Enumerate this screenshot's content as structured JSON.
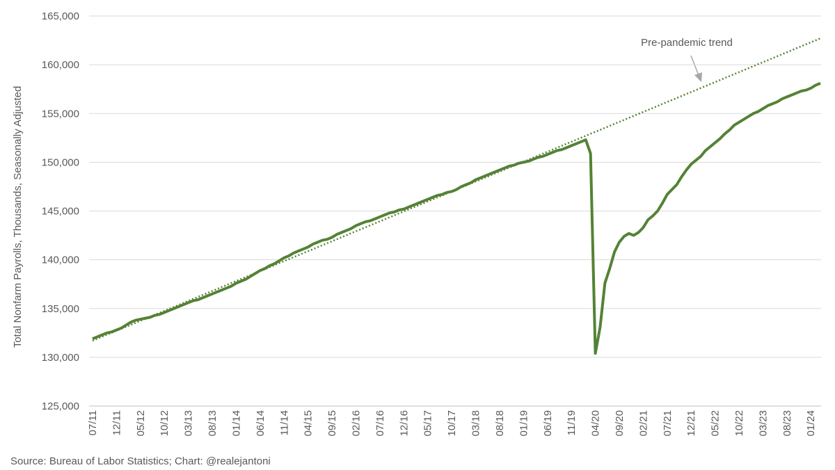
{
  "chart_data": {
    "type": "line",
    "y_label": "Total Nonfarm Payrolls, Thousands, Seasonally Adjusted",
    "annotation": "Pre-pandemic trend",
    "source": "Source: Bureau of Labor Statistics; Chart: @realejantoni",
    "ylim": [
      125000,
      165000
    ],
    "yticks": [
      {
        "value": 125000,
        "label": "125,000"
      },
      {
        "value": 130000,
        "label": "130,000"
      },
      {
        "value": 135000,
        "label": "135,000"
      },
      {
        "value": 140000,
        "label": "140,000"
      },
      {
        "value": 145000,
        "label": "145,000"
      },
      {
        "value": 150000,
        "label": "150,000"
      },
      {
        "value": 155000,
        "label": "155,000"
      },
      {
        "value": 160000,
        "label": "160,000"
      },
      {
        "value": 165000,
        "label": "165,000"
      }
    ],
    "grid": true,
    "categories": [
      "07/11",
      null,
      null,
      null,
      null,
      "12/11",
      null,
      null,
      null,
      null,
      "05/12",
      null,
      null,
      null,
      null,
      "10/12",
      null,
      null,
      null,
      null,
      "03/13",
      null,
      null,
      null,
      null,
      "08/13",
      null,
      null,
      null,
      null,
      "01/14",
      null,
      null,
      null,
      null,
      "06/14",
      null,
      null,
      null,
      null,
      "11/14",
      null,
      null,
      null,
      null,
      "04/15",
      null,
      null,
      null,
      null,
      "09/15",
      null,
      null,
      null,
      null,
      "02/16",
      null,
      null,
      null,
      null,
      "07/16",
      null,
      null,
      null,
      null,
      "12/16",
      null,
      null,
      null,
      null,
      "05/17",
      null,
      null,
      null,
      null,
      "10/17",
      null,
      null,
      null,
      null,
      "03/18",
      null,
      null,
      null,
      null,
      "08/18",
      null,
      null,
      null,
      null,
      "01/19",
      null,
      null,
      null,
      null,
      "06/19",
      null,
      null,
      null,
      null,
      "11/19",
      null,
      null,
      null,
      null,
      "04/20",
      null,
      null,
      null,
      null,
      "09/20",
      null,
      null,
      null,
      null,
      "02/21",
      null,
      null,
      null,
      null,
      "07/21",
      null,
      null,
      null,
      null,
      "12/21",
      null,
      null,
      null,
      null,
      "05/22",
      null,
      null,
      null,
      null,
      "10/22",
      null,
      null,
      null,
      null,
      "03/23",
      null,
      null,
      null,
      null,
      "08/23",
      null,
      null,
      null,
      null,
      "01/24",
      null,
      null
    ],
    "series": [
      {
        "color": "#548235",
        "style": "solid",
        "values": [
          131900,
          132100,
          132300,
          132500,
          132600,
          132800,
          133000,
          133300,
          133600,
          133800,
          133900,
          134000,
          134100,
          134300,
          134400,
          134600,
          134800,
          135000,
          135200,
          135400,
          135600,
          135800,
          135900,
          136100,
          136300,
          136500,
          136700,
          136900,
          137100,
          137300,
          137600,
          137800,
          138000,
          138300,
          138600,
          138900,
          139100,
          139400,
          139600,
          139900,
          140200,
          140400,
          140700,
          140900,
          141100,
          141300,
          141600,
          141800,
          142000,
          142100,
          142300,
          142600,
          142800,
          143000,
          143200,
          143500,
          143700,
          143900,
          144000,
          144200,
          144400,
          144600,
          144800,
          144900,
          145100,
          145200,
          145400,
          145600,
          145800,
          146000,
          146200,
          146400,
          146600,
          146700,
          146900,
          147000,
          147200,
          147500,
          147700,
          147900,
          148200,
          148400,
          148600,
          148800,
          149000,
          149200,
          149400,
          149600,
          149700,
          149900,
          150000,
          150100,
          150300,
          150500,
          150600,
          150800,
          151000,
          151200,
          151300,
          151500,
          151700,
          151900,
          152100,
          152300,
          150900,
          130400,
          133100,
          137600,
          139100,
          140800,
          141800,
          142400,
          142700,
          142500,
          142800,
          143300,
          144100,
          144500,
          145000,
          145800,
          146700,
          147200,
          147700,
          148500,
          149200,
          149800,
          150200,
          150600,
          151200,
          151600,
          152000,
          152400,
          152900,
          153300,
          153800,
          154100,
          154400,
          154700,
          155000,
          155200,
          155500,
          155800,
          156000,
          156200,
          156500,
          156700,
          156900,
          157100,
          157300,
          157400,
          157600,
          157900,
          158100
        ]
      },
      {
        "color": "#548235",
        "style": "dotted",
        "values": [
          131700,
          131900,
          132110,
          132310,
          132520,
          132720,
          132920,
          133130,
          133330,
          133540,
          133740,
          133940,
          134150,
          134350,
          134560,
          134760,
          134960,
          135170,
          135370,
          135580,
          135780,
          135980,
          136190,
          136390,
          136600,
          136800,
          137000,
          137210,
          137410,
          137620,
          137820,
          138020,
          138230,
          138430,
          138640,
          138840,
          139040,
          139250,
          139450,
          139660,
          139860,
          140060,
          140270,
          140470,
          140680,
          140880,
          141080,
          141290,
          141490,
          141700,
          141900,
          142100,
          142310,
          142510,
          142720,
          142920,
          143120,
          143330,
          143530,
          143740,
          143940,
          144140,
          144350,
          144550,
          144760,
          144960,
          145160,
          145370,
          145570,
          145780,
          145980,
          146180,
          146390,
          146590,
          146800,
          147000,
          147200,
          147410,
          147610,
          147820,
          148020,
          148220,
          148430,
          148630,
          148840,
          149040,
          149240,
          149450,
          149650,
          149860,
          150060,
          150260,
          150470,
          150670,
          150880,
          151080,
          151280,
          151490,
          151690,
          151900,
          152100,
          152300,
          152510,
          152710,
          152920,
          153120,
          153320,
          153530,
          153730,
          153940,
          154140,
          154340,
          154550,
          154750,
          154960,
          155160,
          155360,
          155570,
          155770,
          155980,
          156180,
          156380,
          156590,
          156790,
          157000,
          157200,
          157400,
          157610,
          157810,
          158020,
          158220,
          158420,
          158630,
          158830,
          159040,
          159240,
          159440,
          159650,
          159850,
          160060,
          160260,
          160460,
          160670,
          160870,
          161080,
          161280,
          161480,
          161690,
          161890,
          162100,
          162300,
          162500,
          162710
        ]
      }
    ]
  }
}
